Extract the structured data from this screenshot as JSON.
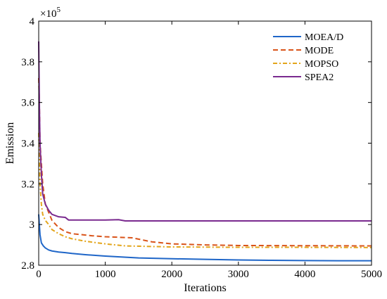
{
  "chart_data": {
    "type": "line",
    "xlabel": "Iterations",
    "ylabel": "Emission",
    "xlim": [
      0,
      5000
    ],
    "ylim": [
      2.8,
      4.0
    ],
    "y_scale_factor_label": "×10",
    "y_scale_factor_exponent": "5",
    "x_ticks": [
      0,
      1000,
      2000,
      3000,
      4000,
      5000
    ],
    "x_tick_labels": [
      "0",
      "1000",
      "2000",
      "3000",
      "4000",
      "5000"
    ],
    "y_ticks": [
      2.8,
      3.0,
      3.2,
      3.4,
      3.6,
      3.8,
      4.0
    ],
    "y_tick_labels": [
      "2.8",
      "3",
      "3.2",
      "3.4",
      "3.6",
      "3.8",
      "4"
    ],
    "grid": false,
    "legend_position": "top-right",
    "series": [
      {
        "name": "MOEA/D",
        "color": "#1f66c8",
        "dash": "solid",
        "x": [
          0,
          10,
          20,
          40,
          70,
          100,
          150,
          200,
          300,
          400,
          500,
          700,
          1000,
          1500,
          2000,
          2500,
          3000,
          3500,
          4000,
          4500,
          5000
        ],
        "y": [
          3.05,
          3.0,
          2.95,
          2.91,
          2.895,
          2.885,
          2.875,
          2.87,
          2.865,
          2.862,
          2.858,
          2.852,
          2.845,
          2.836,
          2.832,
          2.829,
          2.826,
          2.824,
          2.823,
          2.822,
          2.822
        ]
      },
      {
        "name": "MODE",
        "color": "#d9541a",
        "dash": "dashed",
        "x": [
          0,
          10,
          20,
          40,
          60,
          100,
          150,
          200,
          300,
          400,
          500,
          800,
          1000,
          1400,
          1700,
          2000,
          2500,
          3000,
          4000,
          5000
        ],
        "y": [
          3.72,
          3.6,
          3.4,
          3.3,
          3.2,
          3.1,
          3.06,
          3.02,
          2.985,
          2.965,
          2.955,
          2.945,
          2.94,
          2.935,
          2.915,
          2.905,
          2.9,
          2.897,
          2.896,
          2.895
        ]
      },
      {
        "name": "MOPSO",
        "color": "#e3a51b",
        "dash": "dashdot",
        "x": [
          0,
          10,
          20,
          40,
          60,
          100,
          150,
          200,
          300,
          400,
          500,
          700,
          1000,
          1300,
          1700,
          2000,
          2500,
          3000,
          4000,
          5000
        ],
        "y": [
          3.45,
          3.35,
          3.2,
          3.1,
          3.05,
          3.02,
          3.0,
          2.975,
          2.955,
          2.94,
          2.93,
          2.918,
          2.905,
          2.895,
          2.892,
          2.89,
          2.889,
          2.888,
          2.888,
          2.887
        ]
      },
      {
        "name": "SPEA2",
        "color": "#7a2a8f",
        "dash": "solid",
        "x": [
          0,
          10,
          20,
          40,
          60,
          100,
          150,
          200,
          300,
          400,
          450,
          1000,
          1200,
          1300,
          1500,
          2000,
          3000,
          4000,
          5000
        ],
        "y": [
          3.9,
          3.6,
          3.4,
          3.25,
          3.15,
          3.1,
          3.07,
          3.05,
          3.038,
          3.035,
          3.022,
          3.022,
          3.024,
          3.018,
          3.018,
          3.018,
          3.018,
          3.018,
          3.018
        ]
      }
    ]
  }
}
